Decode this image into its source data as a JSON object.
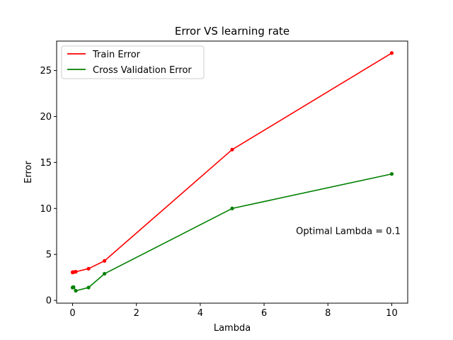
{
  "chart_data": {
    "type": "line",
    "title": "Error VS learning rate",
    "xlabel": "Lambda",
    "ylabel": "Error",
    "xlim": [
      -0.5,
      10.5
    ],
    "ylim": [
      -0.3,
      28.2
    ],
    "xticks": [
      0,
      2,
      4,
      6,
      8,
      10
    ],
    "yticks": [
      0,
      5,
      10,
      15,
      20,
      25
    ],
    "grid": false,
    "legend_position": "top-left",
    "series": [
      {
        "name": "Train Error",
        "color": "#ff0000",
        "x": [
          0,
          0.001,
          0.003,
          0.01,
          0.03,
          0.1,
          0.5,
          1,
          5,
          10
        ],
        "y": [
          3.05,
          3.05,
          3.05,
          3.06,
          3.08,
          3.12,
          3.45,
          4.3,
          16.4,
          26.9
        ]
      },
      {
        "name": "Cross Validation Error",
        "color": "#008000",
        "x": [
          0,
          0.001,
          0.003,
          0.01,
          0.03,
          0.1,
          0.5,
          1,
          5,
          10
        ],
        "y": [
          1.4,
          1.4,
          1.4,
          1.42,
          1.45,
          1.05,
          1.4,
          2.9,
          10.0,
          13.75
        ]
      }
    ],
    "annotation": {
      "text": "Optimal Lambda = 0.1",
      "x": 7.0,
      "y": 7.2
    }
  }
}
